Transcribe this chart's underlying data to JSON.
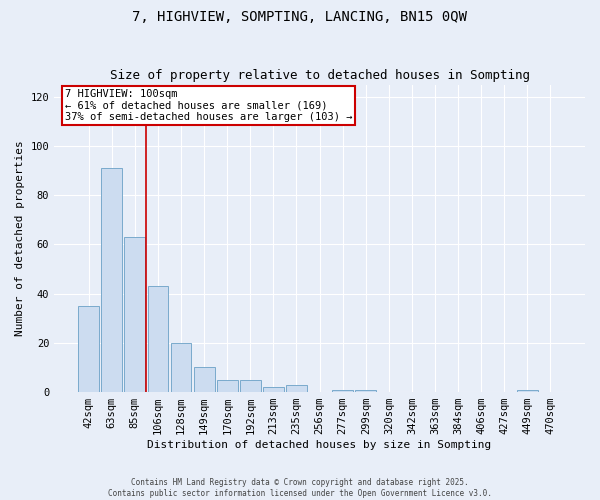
{
  "title": "7, HIGHVIEW, SOMPTING, LANCING, BN15 0QW",
  "subtitle": "Size of property relative to detached houses in Sompting",
  "xlabel": "Distribution of detached houses by size in Sompting",
  "ylabel": "Number of detached properties",
  "bar_labels": [
    "42sqm",
    "63sqm",
    "85sqm",
    "106sqm",
    "128sqm",
    "149sqm",
    "170sqm",
    "192sqm",
    "213sqm",
    "235sqm",
    "256sqm",
    "277sqm",
    "299sqm",
    "320sqm",
    "342sqm",
    "363sqm",
    "384sqm",
    "406sqm",
    "427sqm",
    "449sqm",
    "470sqm"
  ],
  "bar_values": [
    35,
    91,
    63,
    43,
    20,
    10,
    5,
    5,
    2,
    3,
    0,
    1,
    1,
    0,
    0,
    0,
    0,
    0,
    0,
    1,
    0
  ],
  "bar_color": "#ccdcf0",
  "bar_edge_color": "#7aaacc",
  "red_line_color": "#cc0000",
  "annotation_line1": "7 HIGHVIEW: 100sqm",
  "annotation_line2": "← 61% of detached houses are smaller (169)",
  "annotation_line3": "37% of semi-detached houses are larger (103) →",
  "annotation_box_color": "#ffffff",
  "annotation_box_edge": "#cc0000",
  "ylim": [
    0,
    125
  ],
  "yticks": [
    0,
    20,
    40,
    60,
    80,
    100,
    120
  ],
  "background_color": "#e8eef8",
  "footer1": "Contains HM Land Registry data © Crown copyright and database right 2025.",
  "footer2": "Contains public sector information licensed under the Open Government Licence v3.0.",
  "title_fontsize": 10,
  "subtitle_fontsize": 9,
  "xlabel_fontsize": 8,
  "ylabel_fontsize": 8,
  "annot_fontsize": 7.5,
  "tick_fontsize": 7.5,
  "footer_fontsize": 5.5
}
